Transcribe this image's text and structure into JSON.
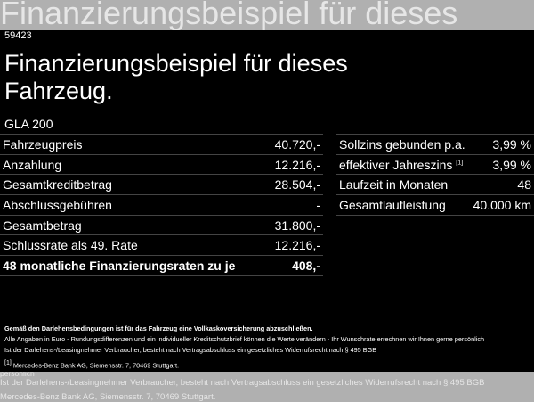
{
  "header": {
    "id": "59423",
    "title_line1": "Finanzierungsbeispiel für dieses",
    "title_line2": "Fahrzeug.",
    "model": "GLA 200"
  },
  "left_table": [
    {
      "label": "Fahrzeugpreis",
      "value": "40.720,-"
    },
    {
      "label": "Anzahlung",
      "value": "12.216,-"
    },
    {
      "label": "Gesamtkreditbetrag",
      "value": "28.504,-"
    },
    {
      "label": "Abschlussgebühren",
      "value": "-"
    },
    {
      "label": "Gesamtbetrag",
      "value": "31.800,-"
    },
    {
      "label": "Schlussrate als 49. Rate",
      "value": "12.216,-"
    },
    {
      "label": "48 monatliche Finanzierungsraten zu je",
      "value": "408,-"
    }
  ],
  "right_table": [
    {
      "label": "Sollzins gebunden p.a.",
      "value": "3,99 %"
    },
    {
      "label": "effektiver Jahreszins",
      "sup": "[1]",
      "value": "3,99 %"
    },
    {
      "label": "Laufzeit in Monaten",
      "value": "48"
    },
    {
      "label": "Gesamtlaufleistung",
      "value": "40.000 km"
    }
  ],
  "notes": {
    "insurance": "Gemäß den Darlehensbedingungen ist für das Fahrzeug eine Vollkaskoversicherung abzuschließen.",
    "disclaimer": "Alle Angaben in Euro - Rundungsdifferenzen und ein individueller Kreditschutzbrief können die Werte verändern - Ihr Wunschrate errechnen wir Ihnen gerne persönlich",
    "withdrawal": "Ist der Darlehens-/Leasingnehmer Verbraucher, besteht nach Vertragsabschluss ein gesetzliches Widerrufsrecht nach § 495 BGB",
    "footnote_mark": "[1]",
    "footnote": "Mercedes-Benz Bank AG, Siemensstr. 7, 70469 Stuttgart."
  },
  "colors": {
    "overlay": "#000000",
    "background": "#b0b0b0",
    "text": "#ffffff"
  }
}
